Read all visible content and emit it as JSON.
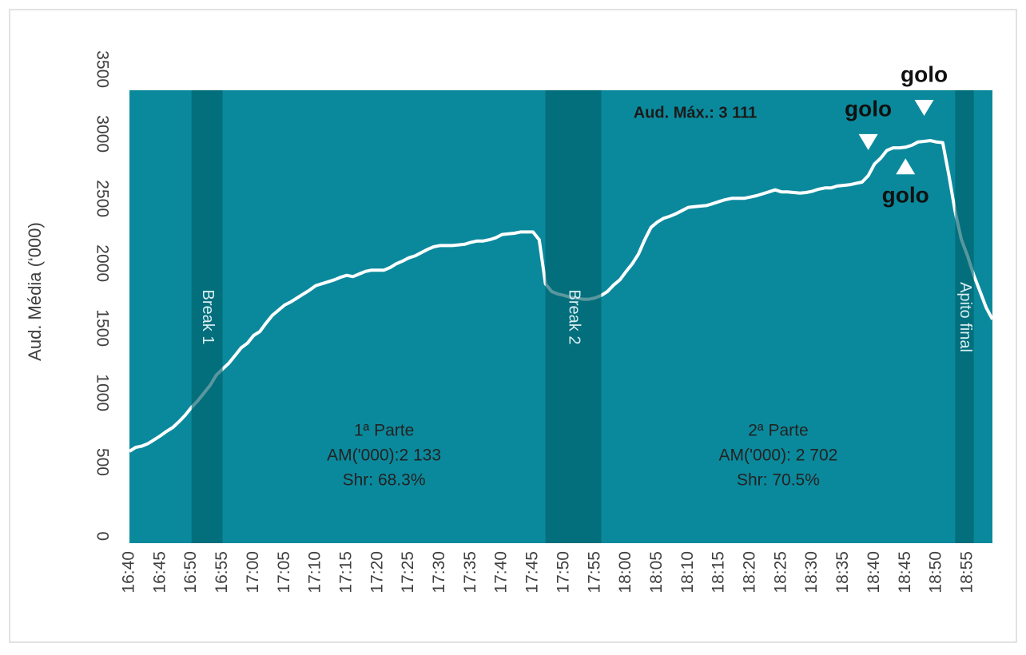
{
  "chart_data": {
    "type": "line",
    "y_label": "Aud. Média (‘000)",
    "x": [
      "16:40",
      "16:41",
      "16:42",
      "16:43",
      "16:44",
      "16:45",
      "16:46",
      "16:47",
      "16:48",
      "16:49",
      "16:50",
      "16:51",
      "16:52",
      "16:53",
      "16:54",
      "16:55",
      "16:56",
      "16:57",
      "16:58",
      "16:59",
      "17:00",
      "17:01",
      "17:02",
      "17:03",
      "17:04",
      "17:05",
      "17:06",
      "17:07",
      "17:08",
      "17:09",
      "17:10",
      "17:11",
      "17:12",
      "17:13",
      "17:14",
      "17:15",
      "17:16",
      "17:17",
      "17:18",
      "17:19",
      "17:20",
      "17:21",
      "17:22",
      "17:23",
      "17:24",
      "17:25",
      "17:26",
      "17:27",
      "17:28",
      "17:29",
      "17:30",
      "17:31",
      "17:32",
      "17:33",
      "17:34",
      "17:35",
      "17:36",
      "17:37",
      "17:38",
      "17:39",
      "17:40",
      "17:41",
      "17:42",
      "17:43",
      "17:44",
      "17:45",
      "17:46",
      "17:47",
      "17:48",
      "17:49",
      "17:50",
      "17:51",
      "17:52",
      "17:53",
      "17:54",
      "17:55",
      "17:56",
      "17:57",
      "17:58",
      "17:59",
      "18:00",
      "18:01",
      "18:02",
      "18:03",
      "18:04",
      "18:05",
      "18:06",
      "18:07",
      "18:08",
      "18:09",
      "18:10",
      "18:11",
      "18:12",
      "18:13",
      "18:14",
      "18:15",
      "18:16",
      "18:17",
      "18:18",
      "18:19",
      "18:20",
      "18:21",
      "18:22",
      "18:23",
      "18:24",
      "18:25",
      "18:26",
      "18:27",
      "18:28",
      "18:29",
      "18:30",
      "18:31",
      "18:32",
      "18:33",
      "18:34",
      "18:35",
      "18:36",
      "18:37",
      "18:38",
      "18:39",
      "18:40",
      "18:41",
      "18:42",
      "18:43",
      "18:44",
      "18:45",
      "18:46",
      "18:47",
      "18:48",
      "18:49",
      "18:50",
      "18:51",
      "18:52",
      "18:53",
      "18:54",
      "18:55",
      "18:56",
      "18:57",
      "18:58",
      "18:59"
    ],
    "series": [
      {
        "name": "Aud. Média",
        "color": "#ffffff",
        "values": [
          710,
          740,
          750,
          770,
          800,
          830,
          865,
          895,
          940,
          990,
          1050,
          1100,
          1160,
          1220,
          1300,
          1345,
          1390,
          1450,
          1510,
          1545,
          1605,
          1635,
          1700,
          1760,
          1800,
          1840,
          1865,
          1895,
          1925,
          1955,
          1990,
          2005,
          2020,
          2035,
          2055,
          2070,
          2060,
          2080,
          2100,
          2110,
          2110,
          2110,
          2130,
          2160,
          2180,
          2205,
          2220,
          2245,
          2270,
          2290,
          2300,
          2300,
          2300,
          2305,
          2310,
          2325,
          2335,
          2335,
          2345,
          2360,
          2385,
          2390,
          2395,
          2405,
          2405,
          2405,
          2345,
          2005,
          1945,
          1925,
          1915,
          1900,
          1895,
          1885,
          1885,
          1895,
          1915,
          1945,
          1995,
          2035,
          2100,
          2160,
          2235,
          2345,
          2440,
          2480,
          2510,
          2525,
          2545,
          2570,
          2595,
          2600,
          2605,
          2610,
          2625,
          2640,
          2655,
          2665,
          2665,
          2665,
          2675,
          2685,
          2700,
          2715,
          2730,
          2715,
          2715,
          2710,
          2705,
          2710,
          2720,
          2735,
          2745,
          2745,
          2760,
          2765,
          2770,
          2780,
          2790,
          2840,
          2930,
          2975,
          3035,
          3055,
          3055,
          3060,
          3075,
          3100,
          3105,
          3111,
          3100,
          3095,
          2840,
          2560,
          2345,
          2220,
          2070,
          1945,
          1820,
          1730
        ]
      }
    ],
    "xlim": [
      "16:40",
      "18:59"
    ],
    "xticks": [
      "16:40",
      "16:45",
      "16:50",
      "16:55",
      "17:00",
      "17:05",
      "17:10",
      "17:15",
      "17:20",
      "17:25",
      "17:30",
      "17:35",
      "17:40",
      "17:45",
      "17:50",
      "17:55",
      "18:00",
      "18:05",
      "18:10",
      "18:15",
      "18:20",
      "18:25",
      "18:30",
      "18:35",
      "18:40",
      "18:45",
      "18:50",
      "18:55"
    ],
    "ylim": [
      0,
      3500
    ],
    "yticks": [
      0,
      500,
      1000,
      1500,
      2000,
      2500,
      3000,
      3500
    ],
    "background_color": "#0b899c",
    "bands": [
      {
        "label": "Break 1",
        "start": "16:50",
        "end": "16:55"
      },
      {
        "label": "Break 2",
        "start": "17:47",
        "end": "17:56"
      },
      {
        "label": "Apito final",
        "start": "18:53",
        "end": "18:56"
      }
    ],
    "band_color": "#005f6c",
    "parts": [
      {
        "lines": [
          "1ª Parte",
          "AM('000):2 133",
          "Shr: 68.3%"
        ],
        "start": "16:55",
        "end": "17:47"
      },
      {
        "lines": [
          "2ª Parte",
          "AM('000): 2 702",
          "Shr: 70.5%"
        ],
        "start": "17:56",
        "end": "18:53"
      }
    ],
    "max_label": "Aud. Máx.: 3 111",
    "goals": [
      {
        "label": "golo",
        "time": "18:39",
        "direction": "down"
      },
      {
        "label": "golo",
        "time": "18:45",
        "direction": "up"
      },
      {
        "label": "golo",
        "time": "18:48",
        "direction": "down"
      }
    ]
  }
}
